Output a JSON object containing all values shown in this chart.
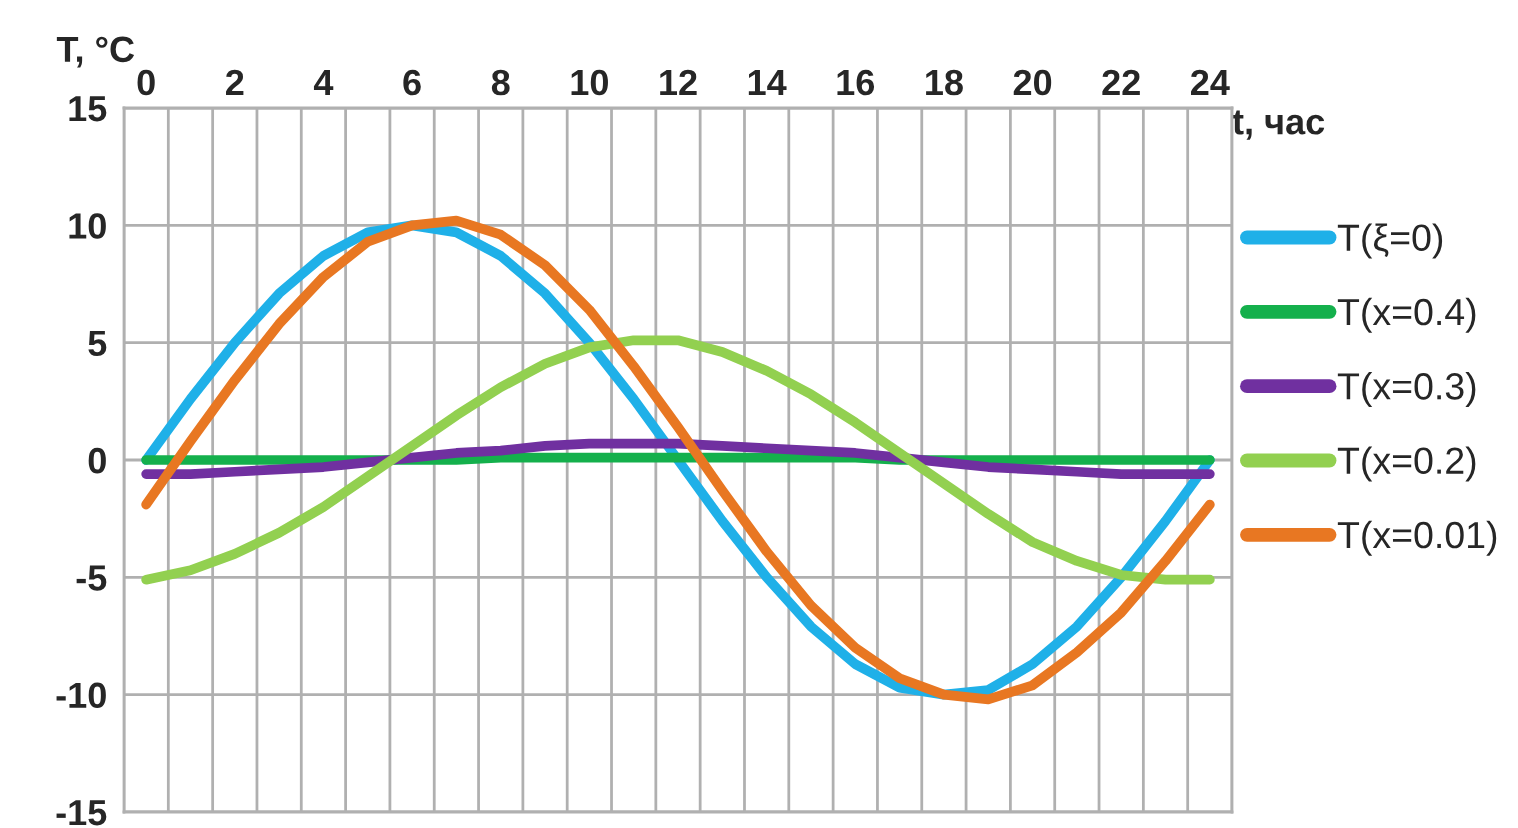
{
  "chart_data": {
    "type": "line",
    "xlabel": "t, час",
    "ylabel": "T, °C",
    "categories": [
      "0",
      null,
      "2",
      null,
      "4",
      null,
      "6",
      null,
      "8",
      null,
      "10",
      null,
      "12",
      null,
      "14",
      null,
      "16",
      null,
      "18",
      null,
      "20",
      null,
      "22",
      null,
      "24"
    ],
    "series": [
      {
        "name": "T(ξ=0)",
        "color": "#1fb0e8",
        "values": [
          0,
          2.6,
          5,
          7.1,
          8.7,
          9.7,
          10,
          9.7,
          8.7,
          7.1,
          5,
          2.6,
          0,
          -2.6,
          -5,
          -7.1,
          -8.7,
          -9.7,
          -10,
          -9.8,
          -8.7,
          -7.1,
          -5,
          -2.6,
          0
        ]
      },
      {
        "name": "T(x=0.4)",
        "color": "#14b04c",
        "values": [
          0,
          0,
          0,
          0,
          0,
          0,
          0,
          0,
          0.1,
          0.1,
          0.1,
          0.1,
          0.1,
          0.1,
          0.1,
          0.1,
          0.1,
          0,
          0,
          0,
          0,
          0,
          0,
          0,
          0
        ]
      },
      {
        "name": "T(x=0.3)",
        "color": "#7030a0",
        "values": [
          -0.6,
          -0.6,
          -0.5,
          -0.4,
          -0.3,
          -0.1,
          0.1,
          0.3,
          0.4,
          0.6,
          0.7,
          0.7,
          0.7,
          0.6,
          0.5,
          0.4,
          0.3,
          0.1,
          -0.1,
          -0.3,
          -0.4,
          -0.5,
          -0.6,
          -0.6,
          -0.6
        ]
      },
      {
        "name": "T(x=0.2)",
        "color": "#92d050",
        "values": [
          -5.1,
          -4.7,
          -4,
          -3.1,
          -2,
          -0.7,
          0.6,
          1.9,
          3.1,
          4.1,
          4.8,
          5.1,
          5.1,
          4.6,
          3.8,
          2.8,
          1.6,
          0.3,
          -1,
          -2.3,
          -3.5,
          -4.3,
          -4.9,
          -5.1,
          -5.1
        ]
      },
      {
        "name": "T(x=0.01)",
        "color": "#e87722",
        "values": [
          -1.9,
          0.8,
          3.4,
          5.8,
          7.8,
          9.3,
          10,
          10.2,
          9.6,
          8.3,
          6.4,
          4,
          1.4,
          -1.3,
          -3.9,
          -6.2,
          -8,
          -9.3,
          -10,
          -10.2,
          -9.6,
          -8.2,
          -6.5,
          -4.3,
          -1.9
        ]
      }
    ],
    "ylim": [
      -15,
      15
    ],
    "yticks": [
      -15,
      -10,
      -5,
      0,
      5,
      10,
      15
    ],
    "grid": true,
    "legend": "right",
    "marker": "none",
    "line_style": "solid"
  }
}
